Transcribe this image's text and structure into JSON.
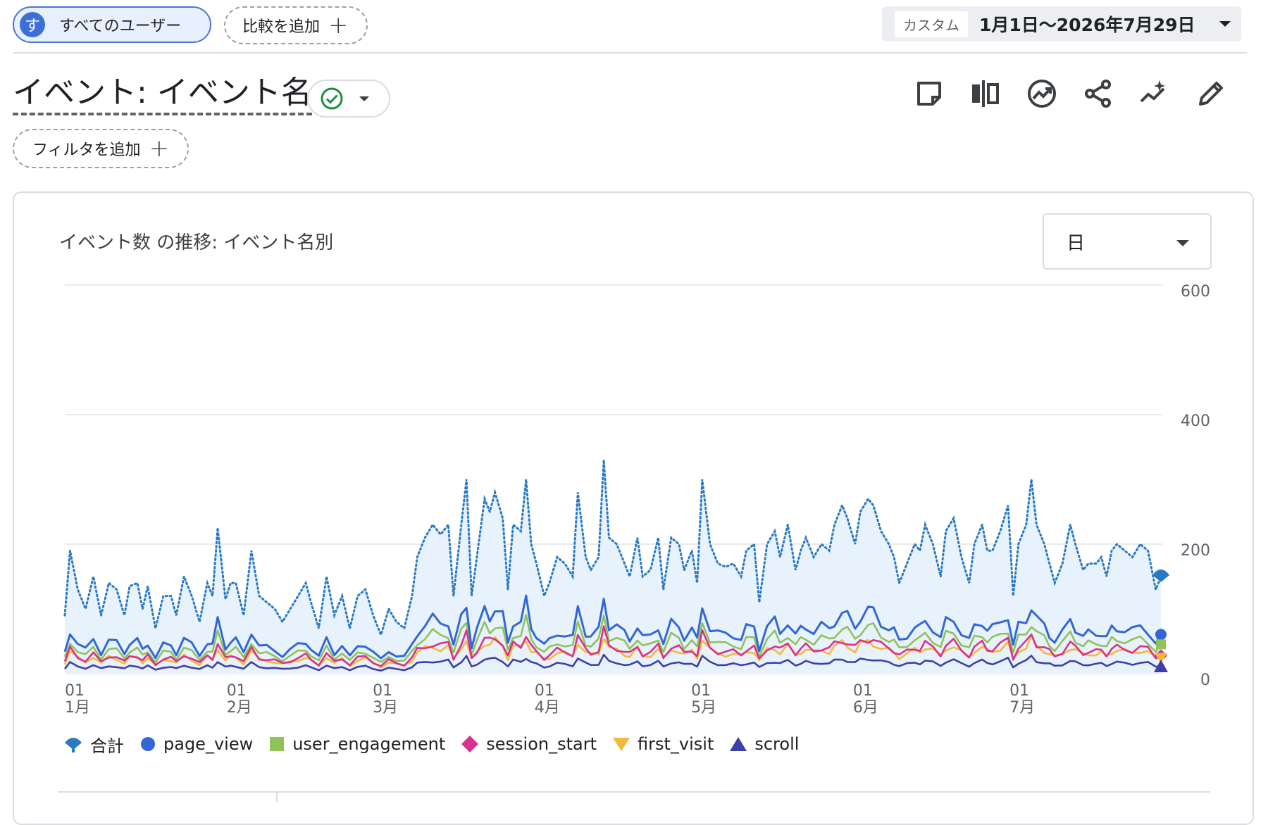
{
  "segment": {
    "avatar_letter": "す",
    "label": "すべてのユーザー"
  },
  "compare": {
    "label": "比較を追加"
  },
  "date": {
    "tag": "カスタム",
    "range": "1月1日～2026年7月29日"
  },
  "report": {
    "title": "イベント: イベント名",
    "status": "verified"
  },
  "filter": {
    "label": "フィルタを追加"
  },
  "toolbar": {
    "icons": [
      "note-icon",
      "compare-columns-icon",
      "insights-icon",
      "share-icon",
      "trend-sparkle-icon",
      "edit-icon"
    ]
  },
  "card": {
    "title": "イベント数 の推移: イベント名別",
    "granularity": "日"
  },
  "colors": {
    "total": "#2a79c3",
    "page_view": "#3367d6",
    "user_engagement": "#8fc35a",
    "session_start": "#d6338a",
    "first_visit": "#f4b93b",
    "scroll": "#3f3fa8",
    "fill": "#e8f2fc"
  },
  "chart_data": {
    "type": "line",
    "title": "イベント数 の推移: イベント名別",
    "xlabel": "",
    "ylabel": "",
    "ylim": [
      0,
      600
    ],
    "y_ticks": [
      "0",
      "200",
      "400",
      "600"
    ],
    "x_ticks": [
      {
        "day": 0,
        "d": "01",
        "m": "1月"
      },
      {
        "day": 31,
        "d": "01",
        "m": "2月"
      },
      {
        "day": 59,
        "d": "01",
        "m": "3月"
      },
      {
        "day": 90,
        "d": "01",
        "m": "4月"
      },
      {
        "day": 120,
        "d": "01",
        "m": "5月"
      },
      {
        "day": 151,
        "d": "01",
        "m": "6月"
      },
      {
        "day": 181,
        "d": "01",
        "m": "7月"
      }
    ],
    "days": 210,
    "grid": true,
    "legend_position": "bottom",
    "series": [
      {
        "name": "合計",
        "key": "total",
        "style": "dotted-area",
        "points": [
          [
            0,
            90
          ],
          [
            2,
            190
          ],
          [
            5,
            130
          ],
          [
            8,
            100
          ],
          [
            11,
            150
          ],
          [
            14,
            90
          ],
          [
            17,
            140
          ],
          [
            20,
            130
          ],
          [
            23,
            90
          ],
          [
            25,
            135
          ],
          [
            28,
            140
          ],
          [
            30,
            100
          ],
          [
            32,
            135
          ],
          [
            35,
            70
          ],
          [
            38,
            120
          ],
          [
            41,
            120
          ],
          [
            43,
            90
          ],
          [
            46,
            150
          ],
          [
            49,
            120
          ],
          [
            52,
            80
          ],
          [
            55,
            140
          ],
          [
            57,
            120
          ],
          [
            59,
            225
          ],
          [
            62,
            115
          ],
          [
            64,
            140
          ],
          [
            66,
            140
          ],
          [
            69,
            90
          ],
          [
            72,
            190
          ],
          [
            75,
            120
          ],
          [
            78,
            110
          ],
          [
            81,
            100
          ],
          [
            84,
            80
          ],
          [
            87,
            100
          ],
          [
            90,
            120
          ],
          [
            93,
            140
          ],
          [
            95,
            110
          ],
          [
            98,
            70
          ],
          [
            101,
            150
          ],
          [
            104,
            90
          ],
          [
            107,
            120
          ],
          [
            110,
            70
          ],
          [
            113,
            120
          ],
          [
            116,
            130
          ],
          [
            119,
            90
          ],
          [
            122,
            60
          ],
          [
            125,
            100
          ],
          [
            128,
            80
          ],
          [
            131,
            70
          ],
          [
            134,
            120
          ],
          [
            136,
            180
          ],
          [
            139,
            210
          ],
          [
            142,
            230
          ],
          [
            145,
            215
          ],
          [
            148,
            230
          ],
          [
            150,
            120
          ],
          [
            153,
            230
          ],
          [
            155,
            300
          ],
          [
            157,
            120
          ],
          [
            159,
            180
          ],
          [
            162,
            270
          ],
          [
            164,
            250
          ],
          [
            166,
            280
          ],
          [
            169,
            240
          ],
          [
            171,
            130
          ],
          [
            173,
            230
          ],
          [
            176,
            220
          ],
          [
            178,
            300
          ],
          [
            180,
            200
          ],
          [
            182,
            170
          ],
          [
            185,
            120
          ],
          [
            187,
            140
          ],
          [
            190,
            180
          ],
          [
            193,
            170
          ],
          [
            196,
            150
          ],
          [
            198,
            280
          ],
          [
            201,
            180
          ],
          [
            203,
            160
          ],
          [
            206,
            180
          ],
          [
            208,
            330
          ],
          [
            210,
            210
          ],
          [
            213,
            200
          ],
          [
            216,
            170
          ],
          [
            218,
            150
          ],
          [
            221,
            210
          ],
          [
            223,
            150
          ],
          [
            226,
            160
          ],
          [
            229,
            210
          ],
          [
            231,
            130
          ],
          [
            234,
            210
          ],
          [
            237,
            200
          ],
          [
            239,
            160
          ],
          [
            242,
            190
          ],
          [
            244,
            140
          ],
          [
            246,
            300
          ],
          [
            249,
            200
          ],
          [
            252,
            170
          ],
          [
            255,
            165
          ],
          [
            258,
            170
          ],
          [
            261,
            150
          ],
          [
            263,
            190
          ],
          [
            266,
            200
          ],
          [
            268,
            110
          ],
          [
            271,
            200
          ],
          [
            274,
            220
          ],
          [
            276,
            180
          ],
          [
            279,
            230
          ],
          [
            282,
            160
          ],
          [
            284,
            190
          ],
          [
            286,
            210
          ],
          [
            289,
            180
          ],
          [
            292,
            200
          ],
          [
            295,
            190
          ],
          [
            297,
            230
          ],
          [
            300,
            260
          ],
          [
            302,
            240
          ],
          [
            305,
            200
          ],
          [
            307,
            250
          ],
          [
            310,
            270
          ],
          [
            312,
            260
          ],
          [
            315,
            220
          ],
          [
            318,
            200
          ],
          [
            320,
            180
          ],
          [
            322,
            140
          ],
          [
            325,
            170
          ],
          [
            328,
            200
          ],
          [
            330,
            190
          ],
          [
            332,
            230
          ],
          [
            335,
            200
          ],
          [
            338,
            150
          ],
          [
            340,
            220
          ],
          [
            343,
            240
          ],
          [
            346,
            180
          ],
          [
            349,
            140
          ],
          [
            351,
            200
          ],
          [
            354,
            230
          ],
          [
            356,
            190
          ],
          [
            358,
            190
          ],
          [
            361,
            220
          ],
          [
            364,
            260
          ],
          [
            366,
            120
          ],
          [
            368,
            200
          ],
          [
            371,
            230
          ],
          [
            373,
            300
          ],
          [
            375,
            230
          ],
          [
            378,
            200
          ],
          [
            380,
            170
          ],
          [
            382,
            140
          ],
          [
            385,
            170
          ],
          [
            388,
            230
          ],
          [
            390,
            200
          ],
          [
            393,
            160
          ],
          [
            395,
            170
          ],
          [
            398,
            170
          ],
          [
            400,
            180
          ],
          [
            402,
            150
          ],
          [
            404,
            190
          ],
          [
            406,
            200
          ],
          [
            409,
            190
          ],
          [
            412,
            180
          ],
          [
            415,
            200
          ],
          [
            418,
            190
          ],
          [
            421,
            130
          ],
          [
            423,
            150
          ]
        ]
      },
      {
        "name": "page_view",
        "key": "page_view",
        "style": "line",
        "marker": "circle"
      },
      {
        "name": "user_engagement",
        "key": "user_engagement",
        "style": "line",
        "marker": "square"
      },
      {
        "name": "session_start",
        "key": "session_start",
        "style": "line",
        "marker": "diamond"
      },
      {
        "name": "first_visit",
        "key": "first_visit",
        "style": "line",
        "marker": "tri-down"
      },
      {
        "name": "scroll",
        "key": "scroll",
        "style": "line",
        "marker": "triangle"
      }
    ],
    "component_levels": {
      "page_view": 0.36,
      "user_engagement": 0.27,
      "session_start": 0.2,
      "first_visit": 0.18,
      "scroll": 0.085
    }
  }
}
